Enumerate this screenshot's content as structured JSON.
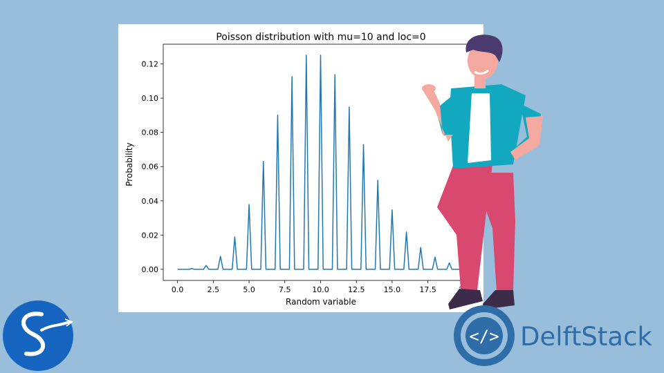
{
  "chart_data": {
    "type": "line",
    "title": "Poisson distribution with mu=10 and loc=0",
    "xlabel": "Random variable",
    "ylabel": "Probability",
    "xlim": [
      -1,
      21
    ],
    "ylim": [
      -0.0065,
      0.1315
    ],
    "x_ticks": [
      0,
      2.5,
      5,
      7.5,
      10,
      12.5,
      15,
      17.5,
      20
    ],
    "x_tick_labels": [
      "0.0",
      "2.5",
      "5.0",
      "7.5",
      "10.0",
      "12.5",
      "15.0",
      "17.5",
      "20"
    ],
    "y_ticks": [
      0,
      0.02,
      0.04,
      0.06,
      0.08,
      0.1,
      0.12
    ],
    "y_tick_labels": [
      "0.00",
      "0.02",
      "0.04",
      "0.06",
      "0.08",
      "0.10",
      "0.12"
    ],
    "grid": false,
    "series": [
      {
        "color": "#1f77b4",
        "x": [
          0,
          1,
          2,
          3,
          4,
          5,
          6,
          7,
          8,
          9,
          10,
          11,
          12,
          13,
          14,
          15,
          16,
          17,
          18,
          19,
          20
        ],
        "y": [
          5e-05,
          0.00045,
          0.00227,
          0.00757,
          0.01892,
          0.03783,
          0.06306,
          0.09008,
          0.1126,
          0.12511,
          0.12511,
          0.11374,
          0.09478,
          0.07291,
          0.05208,
          0.03472,
          0.0217,
          0.01276,
          0.00709,
          0.00373,
          0.00187
        ]
      }
    ]
  },
  "brand": {
    "name": "DelftStack",
    "color": "#2f6da8",
    "logo_icon": "code-brackets-emblem-icon"
  },
  "corner_logo": {
    "icon": "scipy-snake-icon",
    "color": "#1565c0"
  }
}
